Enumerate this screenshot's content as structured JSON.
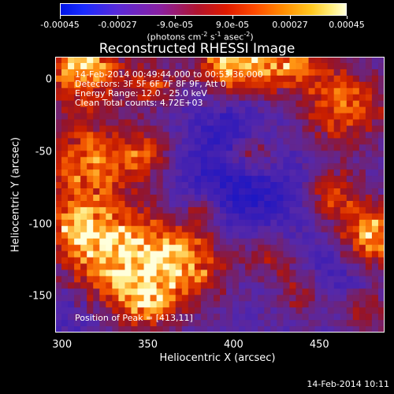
{
  "colorbar": {
    "ticks": [
      "-0.00045",
      "-0.00027",
      "-9.0e-05",
      "9.0e-05",
      "0.00027",
      "0.00045"
    ],
    "units_prefix": "(photons cm",
    "units_exp1": "-2",
    "units_mid": " s",
    "units_exp2": "-1",
    "units_mid2": " asec",
    "units_exp3": "-2",
    "units_suffix": ")"
  },
  "plot": {
    "title": "Reconstructed RHESSI Image",
    "overlay": {
      "line1": "14-Feb-2014 00:49:44.000 to 00:53:36.000",
      "line2": "Detectors: 3F 5F 6F 7F 8F 9F, Att 0",
      "line3": "Energy Range: 12.0 - 25.0 keV",
      "line4": "Clean    Total counts: 4.72E+03",
      "peak": "Position of Peak = [413,11]"
    },
    "xlabel": "Heliocentric X (arcsec)",
    "ylabel": "Heliocentric Y (arcsec)",
    "xticks": [
      "300",
      "350",
      "400",
      "450"
    ],
    "yticks": [
      "0",
      "-50",
      "-100",
      "-150"
    ]
  },
  "chart_data": {
    "type": "heatmap",
    "title": "Reconstructed RHESSI Image",
    "xlabel": "Heliocentric X (arcsec)",
    "ylabel": "Heliocentric Y (arcsec)",
    "xlim": [
      296,
      488
    ],
    "ylim": [
      -175,
      16
    ],
    "color_range": [
      -0.00045,
      0.00045
    ],
    "peak": [
      413,
      11
    ]
  },
  "timestamp": "14-Feb-2014 10:11"
}
